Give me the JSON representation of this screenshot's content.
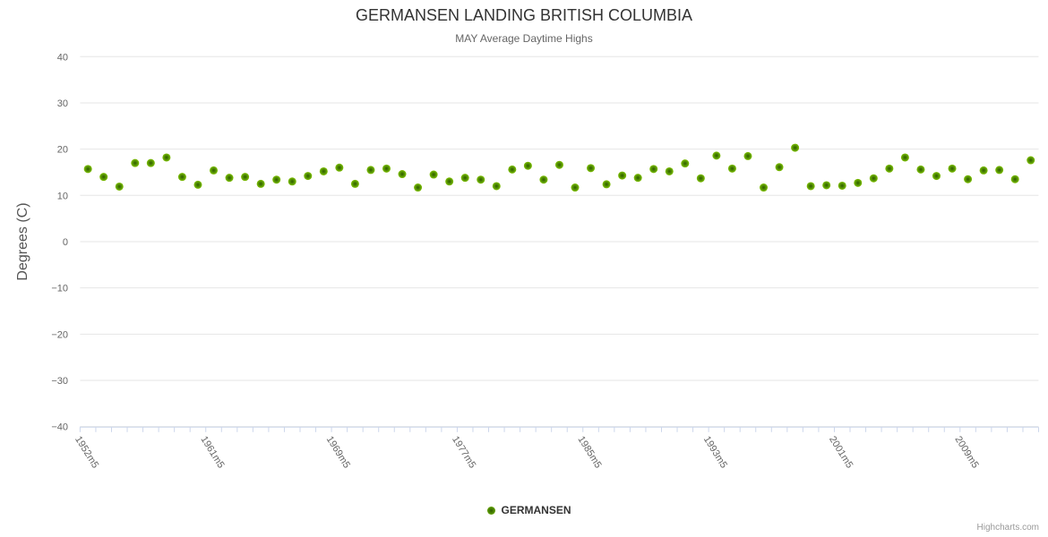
{
  "chart_data": {
    "type": "scatter",
    "title": "GERMANSEN LANDING BRITISH COLUMBIA",
    "subtitle": "MAY Average Daytime Highs",
    "ylabel": "Degrees (C)",
    "ylim": [
      -40,
      40
    ],
    "y_tick_labels": [
      "40",
      "30",
      "20",
      "10",
      "0",
      "−10",
      "−20",
      "−30",
      "−40"
    ],
    "x_tick_labels": [
      {
        "text": "1952m5",
        "index": 1
      },
      {
        "text": "1961m5",
        "index": 9
      },
      {
        "text": "1969m5",
        "index": 17
      },
      {
        "text": "1977m5",
        "index": 25
      },
      {
        "text": "1985m5",
        "index": 33
      },
      {
        "text": "1993m5",
        "index": 41
      },
      {
        "text": "2001m5",
        "index": 49
      },
      {
        "text": "2009m5",
        "index": 57
      }
    ],
    "n_points": 61,
    "grid": "horizontal",
    "legend_position": "bottom-center",
    "colors": {
      "grid_line": "#e6e6e6",
      "axis_line": "#ccd6eb",
      "tick_label": "#666666",
      "marker_gradient": [
        "#2f5c00",
        "#539000",
        "#7fc100"
      ]
    },
    "series": [
      {
        "name": "GERMANSEN",
        "color": "#7fc100",
        "values": [
          15.7,
          14.0,
          11.9,
          17.0,
          17.0,
          18.2,
          14.0,
          12.3,
          15.4,
          13.8,
          14.0,
          12.5,
          13.4,
          13.0,
          14.2,
          15.2,
          16.0,
          12.5,
          15.5,
          15.8,
          14.6,
          11.7,
          14.5,
          13.0,
          13.8,
          13.4,
          12.0,
          15.6,
          16.4,
          13.4,
          16.6,
          11.7,
          15.9,
          12.4,
          14.3,
          13.8,
          15.7,
          15.2,
          16.9,
          13.7,
          18.6,
          15.8,
          18.5,
          11.7,
          16.1,
          20.3,
          12.0,
          12.2,
          12.1,
          12.7,
          13.7,
          15.8,
          18.2,
          15.6,
          14.2,
          15.8,
          13.5,
          15.4,
          15.5,
          13.5,
          17.6
        ]
      }
    ]
  },
  "credit": {
    "label": "Highcharts.com"
  }
}
